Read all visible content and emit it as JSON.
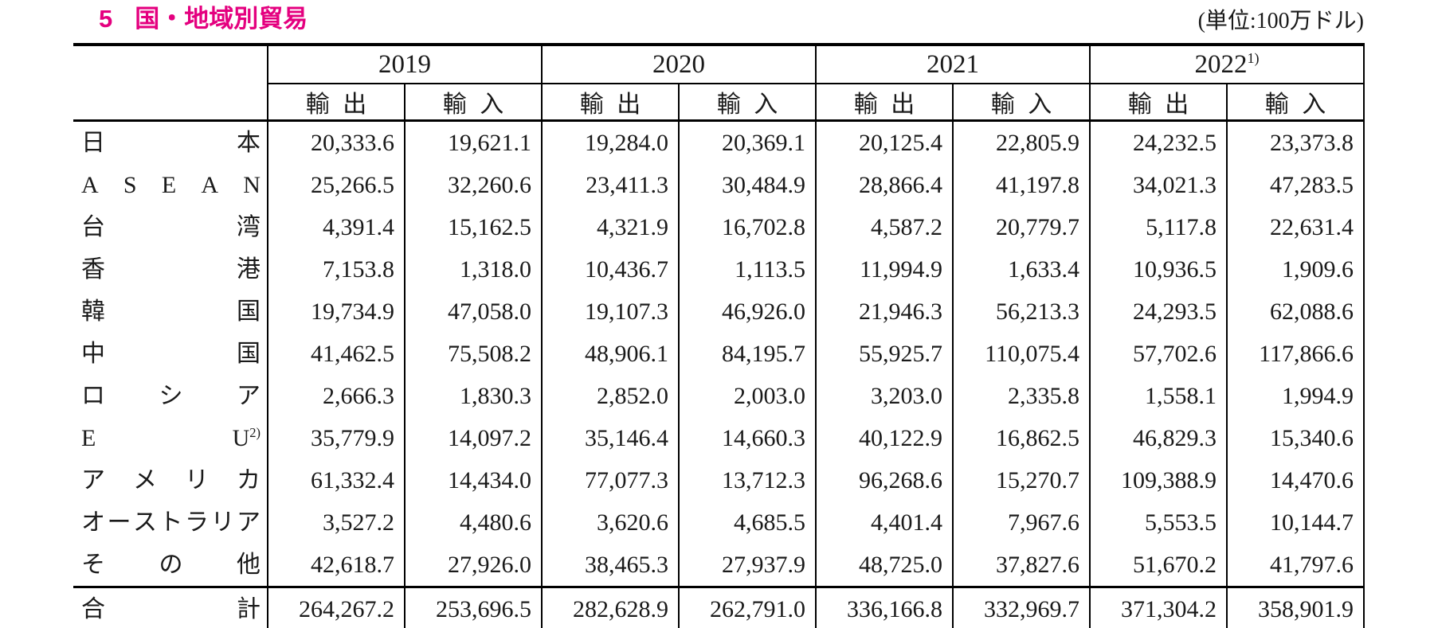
{
  "title": {
    "number": "5",
    "text": "国・地域別貿易"
  },
  "unit_note": "(単位:100万ドル)",
  "colors": {
    "accent": "#e4007f",
    "ink": "#1a1a1a",
    "background": "#ffffff"
  },
  "table": {
    "col_groups": [
      {
        "label": "2019",
        "sup": ""
      },
      {
        "label": "2020",
        "sup": ""
      },
      {
        "label": "2021",
        "sup": ""
      },
      {
        "label": "2022",
        "sup": "1)"
      }
    ],
    "sub_headers": [
      "輸出",
      "輸入"
    ],
    "rows": [
      {
        "label": "日本",
        "sup": "",
        "values": [
          "20,333.6",
          "19,621.1",
          "19,284.0",
          "20,369.1",
          "20,125.4",
          "22,805.9",
          "24,232.5",
          "23,373.8"
        ]
      },
      {
        "label": "ASEAN",
        "sup": "",
        "values": [
          "25,266.5",
          "32,260.6",
          "23,411.3",
          "30,484.9",
          "28,866.4",
          "41,197.8",
          "34,021.3",
          "47,283.5"
        ]
      },
      {
        "label": "台湾",
        "sup": "",
        "values": [
          "4,391.4",
          "15,162.5",
          "4,321.9",
          "16,702.8",
          "4,587.2",
          "20,779.7",
          "5,117.8",
          "22,631.4"
        ]
      },
      {
        "label": "香港",
        "sup": "",
        "values": [
          "7,153.8",
          "1,318.0",
          "10,436.7",
          "1,113.5",
          "11,994.9",
          "1,633.4",
          "10,936.5",
          "1,909.6"
        ]
      },
      {
        "label": "韓国",
        "sup": "",
        "values": [
          "19,734.9",
          "47,058.0",
          "19,107.3",
          "46,926.0",
          "21,946.3",
          "56,213.3",
          "24,293.5",
          "62,088.6"
        ]
      },
      {
        "label": "中国",
        "sup": "",
        "values": [
          "41,462.5",
          "75,508.2",
          "48,906.1",
          "84,195.7",
          "55,925.7",
          "110,075.4",
          "57,702.6",
          "117,866.6"
        ]
      },
      {
        "label": "ロシア",
        "sup": "",
        "values": [
          "2,666.3",
          "1,830.3",
          "2,852.0",
          "2,003.0",
          "3,203.0",
          "2,335.8",
          "1,558.1",
          "1,994.9"
        ]
      },
      {
        "label": "EU",
        "sup": "2)",
        "values": [
          "35,779.9",
          "14,097.2",
          "35,146.4",
          "14,660.3",
          "40,122.9",
          "16,862.5",
          "46,829.3",
          "15,340.6"
        ]
      },
      {
        "label": "アメリカ",
        "sup": "",
        "values": [
          "61,332.4",
          "14,434.0",
          "77,077.3",
          "13,712.3",
          "96,268.6",
          "15,270.7",
          "109,388.9",
          "14,470.6"
        ]
      },
      {
        "label": "オーストラリア",
        "sup": "",
        "values": [
          "3,527.2",
          "4,480.6",
          "3,620.6",
          "4,685.5",
          "4,401.4",
          "7,967.6",
          "5,553.5",
          "10,144.7"
        ]
      },
      {
        "label": "その他",
        "sup": "",
        "values": [
          "42,618.7",
          "27,926.0",
          "38,465.3",
          "27,937.9",
          "48,725.0",
          "37,827.6",
          "51,670.2",
          "41,797.6"
        ]
      }
    ],
    "total_row": {
      "label": "合計",
      "sup": "",
      "values": [
        "264,267.2",
        "253,696.5",
        "282,628.9",
        "262,791.0",
        "336,166.8",
        "332,969.7",
        "371,304.2",
        "358,901.9"
      ]
    }
  }
}
